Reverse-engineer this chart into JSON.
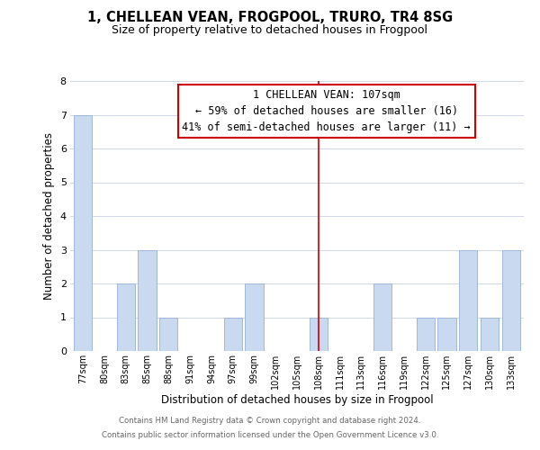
{
  "title": "1, CHELLEAN VEAN, FROGPOOL, TRURO, TR4 8SG",
  "subtitle": "Size of property relative to detached houses in Frogpool",
  "xlabel": "Distribution of detached houses by size in Frogpool",
  "ylabel": "Number of detached properties",
  "bin_labels": [
    "77sqm",
    "80sqm",
    "83sqm",
    "85sqm",
    "88sqm",
    "91sqm",
    "94sqm",
    "97sqm",
    "99sqm",
    "102sqm",
    "105sqm",
    "108sqm",
    "111sqm",
    "113sqm",
    "116sqm",
    "119sqm",
    "122sqm",
    "125sqm",
    "127sqm",
    "130sqm",
    "133sqm"
  ],
  "bin_values": [
    7,
    0,
    2,
    3,
    1,
    0,
    0,
    1,
    2,
    0,
    0,
    1,
    0,
    0,
    2,
    0,
    1,
    1,
    3,
    1,
    3
  ],
  "bar_color": "#c8d9f0",
  "bar_edge_color": "#a0b8d8",
  "highlight_index": 11,
  "highlight_line_color": "#cc0000",
  "ylim": [
    0,
    8
  ],
  "yticks": [
    0,
    1,
    2,
    3,
    4,
    5,
    6,
    7,
    8
  ],
  "annotation_title": "1 CHELLEAN VEAN: 107sqm",
  "annotation_line1": "← 59% of detached houses are smaller (16)",
  "annotation_line2": "41% of semi-detached houses are larger (11) →",
  "annotation_box_color": "#ffffff",
  "annotation_box_edge": "#cc0000",
  "footer_line1": "Contains HM Land Registry data © Crown copyright and database right 2024.",
  "footer_line2": "Contains public sector information licensed under the Open Government Licence v3.0.",
  "background_color": "#ffffff",
  "grid_color": "#d0d8e8"
}
